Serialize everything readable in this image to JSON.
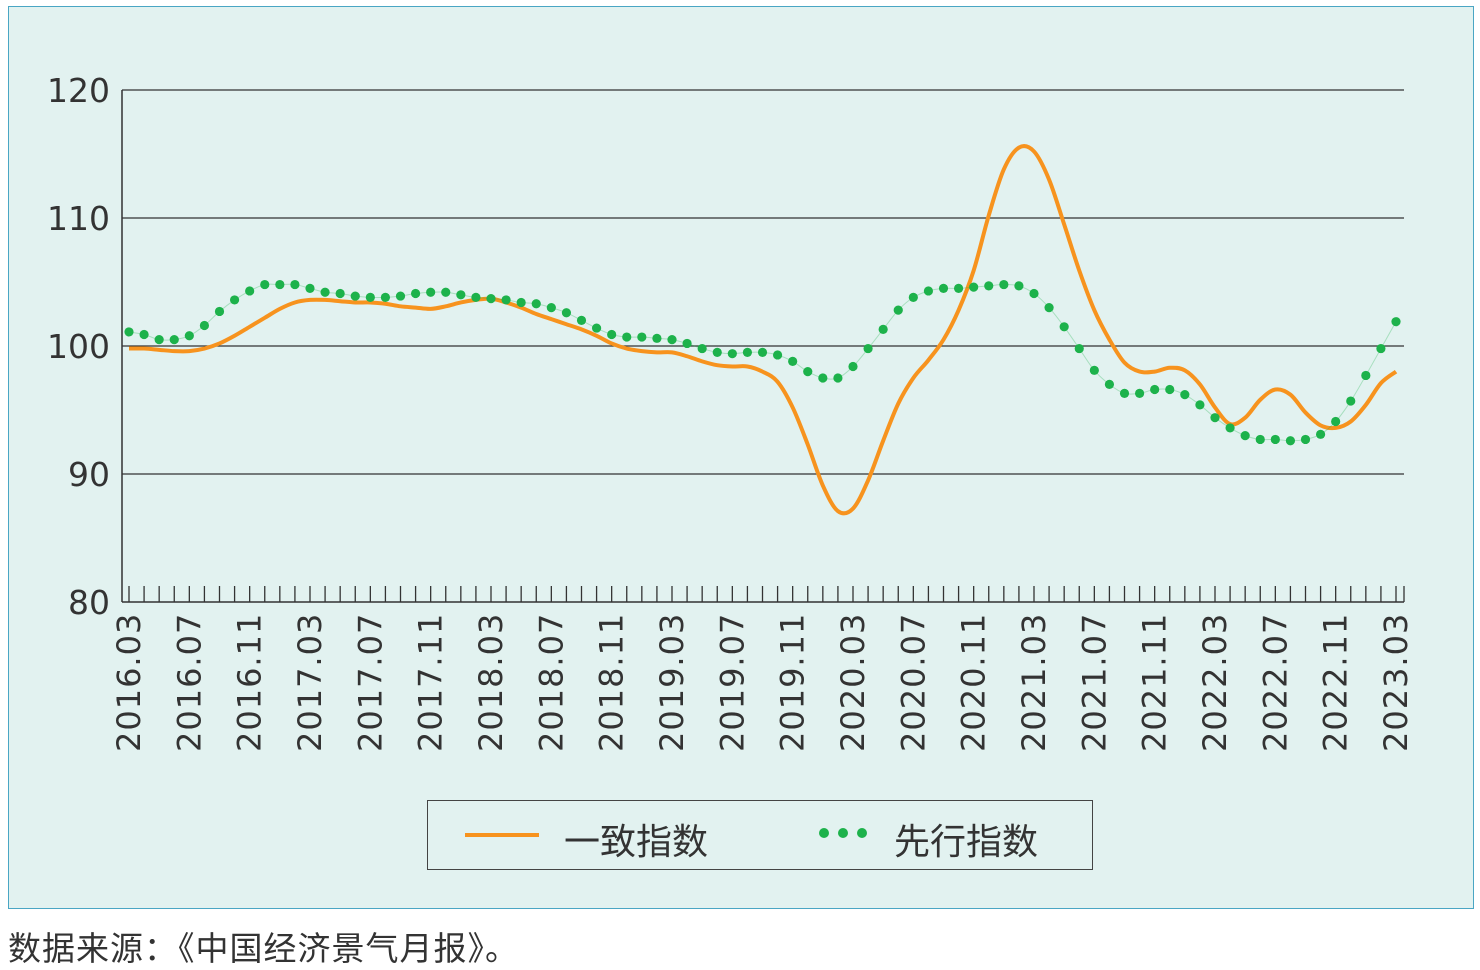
{
  "chart_data": {
    "type": "line",
    "title": "",
    "xlabel": "",
    "ylabel": "",
    "ylim": [
      80,
      120
    ],
    "yticks": [
      80,
      90,
      100,
      110,
      120
    ],
    "grid": true,
    "legend_position": "bottom",
    "x": [
      "2016.03",
      "2016.04",
      "2016.05",
      "2016.06",
      "2016.07",
      "2016.08",
      "2016.09",
      "2016.10",
      "2016.11",
      "2016.12",
      "2017.01",
      "2017.02",
      "2017.03",
      "2017.04",
      "2017.05",
      "2017.06",
      "2017.07",
      "2017.08",
      "2017.09",
      "2017.10",
      "2017.11",
      "2017.12",
      "2018.01",
      "2018.02",
      "2018.03",
      "2018.04",
      "2018.05",
      "2018.06",
      "2018.07",
      "2018.08",
      "2018.09",
      "2018.10",
      "2018.11",
      "2018.12",
      "2019.01",
      "2019.02",
      "2019.03",
      "2019.04",
      "2019.05",
      "2019.06",
      "2019.07",
      "2019.08",
      "2019.09",
      "2019.10",
      "2019.11",
      "2019.12",
      "2020.01",
      "2020.02",
      "2020.03",
      "2020.04",
      "2020.05",
      "2020.06",
      "2020.07",
      "2020.08",
      "2020.09",
      "2020.10",
      "2020.11",
      "2020.12",
      "2021.01",
      "2021.02",
      "2021.03",
      "2021.04",
      "2021.05",
      "2021.06",
      "2021.07",
      "2021.08",
      "2021.09",
      "2021.10",
      "2021.11",
      "2021.12",
      "2022.01",
      "2022.02",
      "2022.03",
      "2022.04",
      "2022.05",
      "2022.06",
      "2022.07",
      "2022.08",
      "2022.09",
      "2022.10",
      "2022.11",
      "2022.12",
      "2023.01",
      "2023.02",
      "2023.03"
    ],
    "tick_labels": [
      "2016.03",
      "2016.07",
      "2016.11",
      "2017.03",
      "2017.07",
      "2017.11",
      "2018.03",
      "2018.07",
      "2018.11",
      "2019.03",
      "2019.07",
      "2019.11",
      "2020.03",
      "2020.07",
      "2020.11",
      "2021.03",
      "2021.07",
      "2021.11",
      "2022.03",
      "2022.07",
      "2022.11",
      "2023.03"
    ],
    "series": [
      {
        "name": "一致指数",
        "style": "solid",
        "color": "#f7931e",
        "values": [
          99.8,
          99.8,
          99.7,
          99.6,
          99.6,
          99.8,
          100.2,
          100.8,
          101.5,
          102.2,
          102.9,
          103.4,
          103.6,
          103.6,
          103.5,
          103.4,
          103.4,
          103.3,
          103.1,
          103.0,
          102.9,
          103.1,
          103.4,
          103.6,
          103.7,
          103.4,
          103.0,
          102.5,
          102.1,
          101.7,
          101.3,
          100.8,
          100.2,
          99.8,
          99.6,
          99.5,
          99.5,
          99.2,
          98.8,
          98.5,
          98.4,
          98.4,
          98.0,
          97.2,
          95.2,
          92.3,
          89.1,
          87.1,
          87.3,
          89.5,
          92.6,
          95.5,
          97.5,
          98.9,
          100.5,
          102.8,
          105.9,
          110.2,
          113.8,
          115.5,
          115.2,
          113.0,
          109.5,
          105.9,
          102.8,
          100.5,
          98.7,
          98.0,
          98.0,
          98.3,
          98.1,
          97.0,
          95.2,
          93.9,
          94.4,
          95.8,
          96.6,
          96.2,
          94.8,
          93.8,
          93.6,
          94.1,
          95.4,
          97.1,
          98.0
        ]
      },
      {
        "name": "先行指数",
        "style": "dotted",
        "color": "#1db24b",
        "values": [
          101.1,
          100.9,
          100.5,
          100.5,
          100.8,
          101.6,
          102.7,
          103.6,
          104.3,
          104.8,
          104.8,
          104.8,
          104.5,
          104.2,
          104.1,
          103.9,
          103.8,
          103.8,
          103.9,
          104.1,
          104.2,
          104.2,
          104.0,
          103.8,
          103.7,
          103.6,
          103.4,
          103.3,
          103.0,
          102.6,
          102.0,
          101.4,
          100.9,
          100.7,
          100.7,
          100.6,
          100.5,
          100.2,
          99.8,
          99.5,
          99.4,
          99.5,
          99.5,
          99.3,
          98.8,
          98.0,
          97.5,
          97.5,
          98.4,
          99.8,
          101.3,
          102.8,
          103.8,
          104.3,
          104.5,
          104.5,
          104.6,
          104.7,
          104.8,
          104.7,
          104.1,
          103.0,
          101.5,
          99.8,
          98.1,
          97.0,
          96.3,
          96.3,
          96.6,
          96.6,
          96.2,
          95.4,
          94.4,
          93.6,
          93.0,
          92.7,
          92.7,
          92.6,
          92.7,
          93.1,
          94.1,
          95.7,
          97.7,
          99.8,
          101.9
        ]
      }
    ]
  },
  "source_note": "数据来源：《中国经济景气月报》。"
}
